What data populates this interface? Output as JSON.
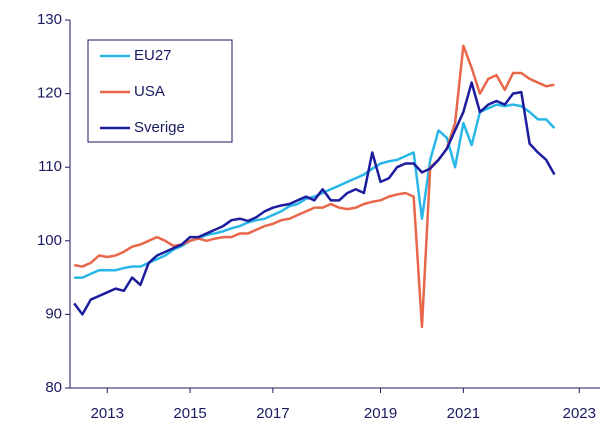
{
  "chart_data": {
    "type": "line",
    "categories": [
      null,
      null,
      null,
      null,
      "2013",
      null,
      null,
      null,
      null,
      null,
      null,
      null,
      null,
      null,
      "2015",
      null,
      null,
      null,
      null,
      null,
      null,
      null,
      null,
      null,
      "2017",
      null,
      null,
      null,
      null,
      null,
      null,
      null,
      null,
      null,
      null,
      null,
      null,
      "2019",
      null,
      null,
      null,
      null,
      null,
      null,
      null,
      null,
      null,
      "2021",
      null,
      null,
      null,
      null,
      null,
      null,
      null,
      null,
      null,
      null,
      null,
      null,
      null,
      "2023",
      null,
      null
    ],
    "series": [
      {
        "name": "EU27",
        "color": "#29b6e8",
        "values": [
          95,
          95,
          95.5,
          96,
          96,
          96,
          96.3,
          96.5,
          96.5,
          97,
          97.5,
          98,
          98.8,
          99.3,
          100,
          100.3,
          100.8,
          101,
          101.3,
          101.7,
          102,
          102.5,
          102.8,
          103,
          103.5,
          104,
          104.7,
          105,
          105.7,
          106,
          106.5,
          107,
          107.5,
          108,
          108.5,
          109,
          109.8,
          110.5,
          110.8,
          111,
          111.5,
          112,
          103,
          111,
          115,
          114,
          110,
          116,
          113,
          117.5,
          118,
          118.5,
          118.3,
          118.5,
          118.3,
          117.5,
          116.5,
          116.5,
          115.3,
          null,
          null,
          null,
          null,
          null
        ]
      },
      {
        "name": "USA",
        "color": "#e8674a",
        "values": [
          96.7,
          96.5,
          97,
          98,
          97.8,
          98,
          98.5,
          99.2,
          99.5,
          100,
          100.5,
          100,
          99.3,
          99.5,
          100,
          100.3,
          100,
          100.3,
          100.5,
          100.5,
          101,
          101,
          101.5,
          102,
          102.3,
          102.8,
          103,
          103.5,
          104,
          104.5,
          104.5,
          105,
          104.5,
          104.3,
          104.5,
          105,
          105.3,
          105.5,
          106,
          106.3,
          106.5,
          106,
          88.3,
          110,
          111,
          112.5,
          116,
          126.5,
          123.5,
          120,
          122,
          122.5,
          120.5,
          122.8,
          122.8,
          122,
          121.5,
          121,
          121.2,
          null,
          null,
          null,
          null,
          null
        ]
      },
      {
        "name": "Sverige",
        "color": "#1c1c9e",
        "values": [
          91.5,
          90,
          92,
          92.5,
          93,
          93.5,
          93.2,
          95,
          94,
          97,
          98,
          98.5,
          99,
          99.5,
          100.5,
          100.5,
          101,
          101.5,
          102,
          102.8,
          103,
          102.7,
          103.2,
          104,
          104.5,
          104.8,
          105,
          105.5,
          106,
          105.5,
          107,
          105.5,
          105.5,
          106.5,
          107,
          106.5,
          112,
          108,
          108.5,
          110,
          110.5,
          110.5,
          109.3,
          109.8,
          111,
          112.5,
          115,
          117.5,
          121.5,
          117.5,
          118.5,
          119,
          118.5,
          120,
          120.2,
          113.2,
          112,
          111,
          109,
          null,
          null,
          null,
          null,
          null
        ]
      }
    ],
    "ylim": [
      80,
      130
    ],
    "yticks": [
      80,
      90,
      100,
      110,
      120,
      130
    ],
    "grid": false
  }
}
